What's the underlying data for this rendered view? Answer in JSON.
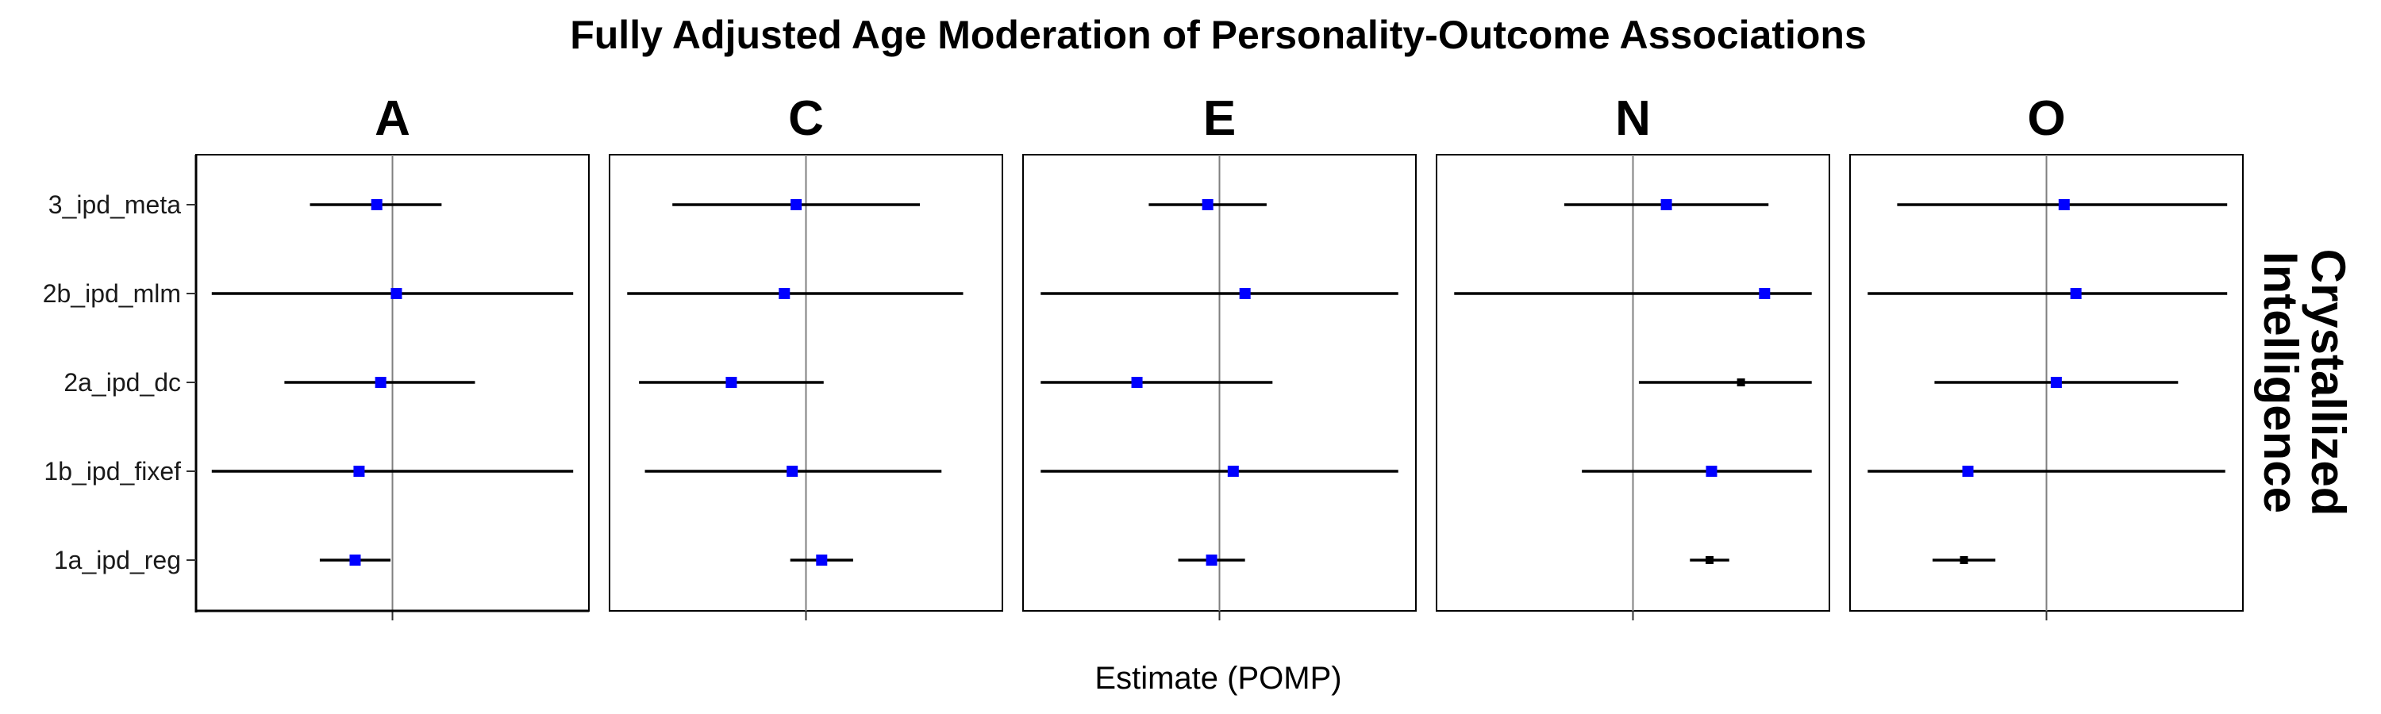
{
  "chart_data": {
    "type": "forest",
    "title": "Fully Adjusted Age Moderation of Personality-Outcome Associations",
    "xlabel": "Estimate (POMP)",
    "strip_label": "Crystallized Intelligence",
    "rows": [
      "3_ipd_meta",
      "2b_ipd_mlm",
      "2a_ipd_dc",
      "1b_ipd_fixef",
      "1a_ipd_reg"
    ],
    "xlim": [
      -1,
      1
    ],
    "reference_line": 0,
    "colors": {
      "blue_point": "#0000ff",
      "black_point": "#000000",
      "line": "#000000",
      "ref": "#808080"
    },
    "panels": [
      {
        "name": "A",
        "points": [
          {
            "row": "3_ipd_meta",
            "est": -0.08,
            "lo": -0.42,
            "hi": 0.25,
            "color": "blue"
          },
          {
            "row": "2b_ipd_mlm",
            "est": 0.02,
            "lo": -0.92,
            "hi": 0.92,
            "color": "blue"
          },
          {
            "row": "2a_ipd_dc",
            "est": -0.06,
            "lo": -0.55,
            "hi": 0.42,
            "color": "blue"
          },
          {
            "row": "1b_ipd_fixef",
            "est": -0.17,
            "lo": -0.92,
            "hi": 0.92,
            "color": "blue"
          },
          {
            "row": "1a_ipd_reg",
            "est": -0.19,
            "lo": -0.37,
            "hi": -0.01,
            "color": "blue"
          }
        ]
      },
      {
        "name": "C",
        "points": [
          {
            "row": "3_ipd_meta",
            "est": -0.05,
            "lo": -0.68,
            "hi": 0.58,
            "color": "blue"
          },
          {
            "row": "2b_ipd_mlm",
            "est": -0.11,
            "lo": -0.91,
            "hi": 0.8,
            "color": "blue"
          },
          {
            "row": "2a_ipd_dc",
            "est": -0.38,
            "lo": -0.85,
            "hi": 0.09,
            "color": "blue"
          },
          {
            "row": "1b_ipd_fixef",
            "est": -0.07,
            "lo": -0.82,
            "hi": 0.69,
            "color": "blue"
          },
          {
            "row": "1a_ipd_reg",
            "est": 0.08,
            "lo": -0.08,
            "hi": 0.24,
            "color": "blue"
          }
        ]
      },
      {
        "name": "E",
        "points": [
          {
            "row": "3_ipd_meta",
            "est": -0.06,
            "lo": -0.36,
            "hi": 0.24,
            "color": "blue"
          },
          {
            "row": "2b_ipd_mlm",
            "est": 0.13,
            "lo": -0.91,
            "hi": 0.91,
            "color": "blue"
          },
          {
            "row": "2a_ipd_dc",
            "est": -0.42,
            "lo": -0.91,
            "hi": 0.27,
            "color": "blue"
          },
          {
            "row": "1b_ipd_fixef",
            "est": 0.07,
            "lo": -0.91,
            "hi": 0.91,
            "color": "blue"
          },
          {
            "row": "1a_ipd_reg",
            "est": -0.04,
            "lo": -0.21,
            "hi": 0.13,
            "color": "blue"
          }
        ]
      },
      {
        "name": "N",
        "points": [
          {
            "row": "3_ipd_meta",
            "est": 0.17,
            "lo": -0.35,
            "hi": 0.69,
            "color": "blue"
          },
          {
            "row": "2b_ipd_mlm",
            "est": 0.67,
            "lo": -0.91,
            "hi": 0.91,
            "color": "blue"
          },
          {
            "row": "2a_ipd_dc",
            "est": 0.55,
            "lo": 0.03,
            "hi": 0.91,
            "color": "black"
          },
          {
            "row": "1b_ipd_fixef",
            "est": 0.4,
            "lo": -0.26,
            "hi": 0.91,
            "color": "blue"
          },
          {
            "row": "1a_ipd_reg",
            "est": 0.39,
            "lo": 0.29,
            "hi": 0.49,
            "color": "black"
          }
        ]
      },
      {
        "name": "O",
        "points": [
          {
            "row": "3_ipd_meta",
            "est": 0.09,
            "lo": -0.76,
            "hi": 0.92,
            "color": "blue"
          },
          {
            "row": "2b_ipd_mlm",
            "est": 0.15,
            "lo": -0.91,
            "hi": 0.92,
            "color": "blue"
          },
          {
            "row": "2a_ipd_dc",
            "est": 0.05,
            "lo": -0.57,
            "hi": 0.67,
            "color": "blue"
          },
          {
            "row": "1b_ipd_fixef",
            "est": -0.4,
            "lo": -0.91,
            "hi": 0.91,
            "color": "blue"
          },
          {
            "row": "1a_ipd_reg",
            "est": -0.42,
            "lo": -0.58,
            "hi": -0.26,
            "color": "black"
          }
        ]
      }
    ]
  }
}
